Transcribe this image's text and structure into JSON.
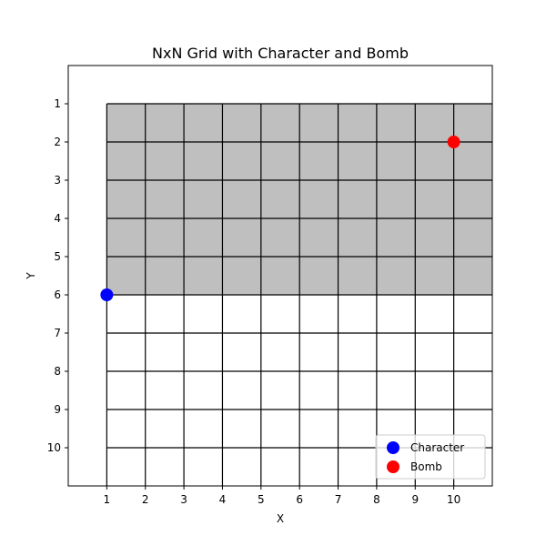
{
  "chart_data": {
    "type": "scatter",
    "title": "NxN Grid with Character and Bomb",
    "xlabel": "X",
    "ylabel": "Y",
    "xlim": [
      0,
      11
    ],
    "ylim": [
      11,
      0
    ],
    "y_inverted": true,
    "xticks": [
      1,
      2,
      3,
      4,
      5,
      6,
      7,
      8,
      9,
      10
    ],
    "yticks": [
      1,
      2,
      3,
      4,
      5,
      6,
      7,
      8,
      9,
      10
    ],
    "grid": {
      "x_lines": [
        1,
        2,
        3,
        4,
        5,
        6,
        7,
        8,
        9,
        10
      ],
      "y_lines": [
        1,
        2,
        3,
        4,
        5,
        6,
        7,
        8,
        9,
        10
      ],
      "cells_x": [
        1,
        11
      ],
      "cells_y": [
        1,
        11
      ],
      "line_color": "#000000"
    },
    "shaded_region": {
      "x": [
        1,
        11
      ],
      "y": [
        1,
        6
      ],
      "color": "#bfbfbf"
    },
    "series": [
      {
        "name": "Character",
        "x": [
          1
        ],
        "y": [
          6
        ],
        "color": "#0000ff"
      },
      {
        "name": "Bomb",
        "x": [
          10
        ],
        "y": [
          2
        ],
        "color": "#ff0000"
      }
    ],
    "legend": {
      "position": "lower-right",
      "entries": [
        "Character",
        "Bomb"
      ]
    }
  }
}
